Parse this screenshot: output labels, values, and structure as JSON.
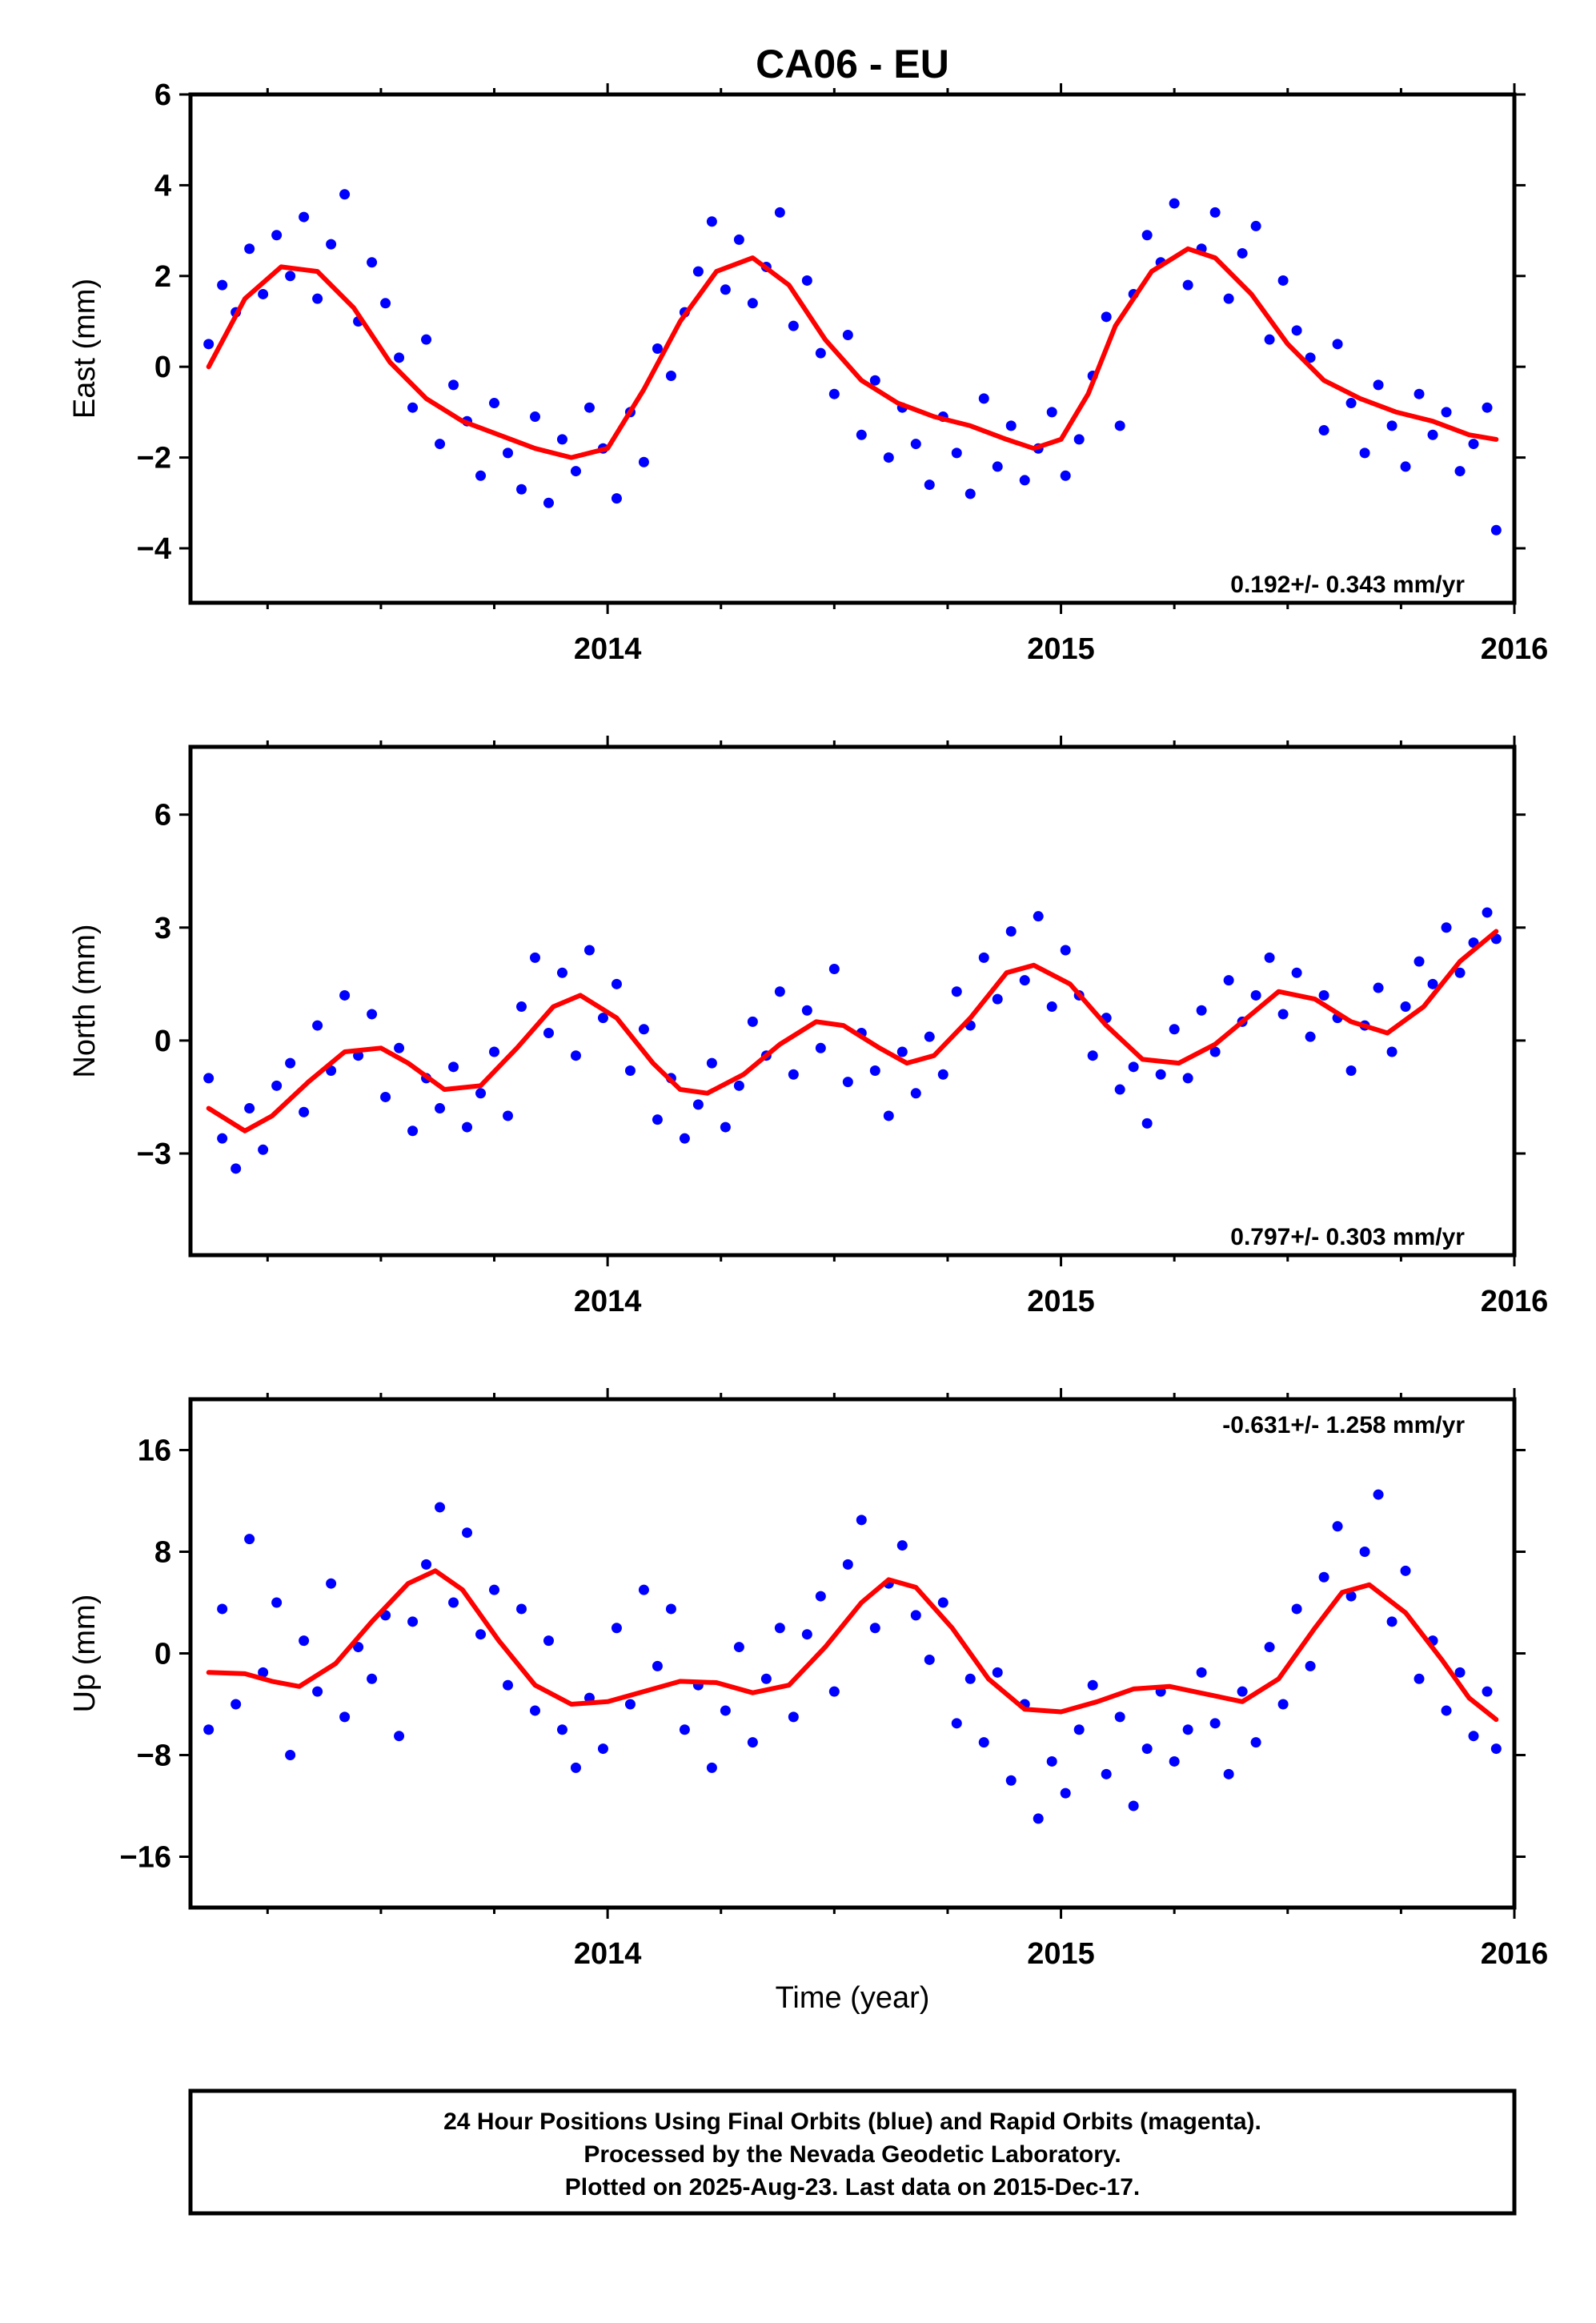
{
  "title": "CA06 - EU",
  "xlabel": "Time (year)",
  "footer": {
    "line1": "24 Hour Positions Using Final Orbits (blue) and Rapid Orbits (magenta).",
    "line2": "Processed by the Nevada Geodetic Laboratory.",
    "line3": "Plotted on 2025-Aug-23. Last data on 2015-Dec-17."
  },
  "colors": {
    "points": "#0000ff",
    "fit": "#ff0000",
    "frame": "#000000"
  },
  "chart_data": [
    {
      "type": "scatter",
      "component": "east",
      "ylabel": "East (mm)",
      "rate_label": "0.192+/- 0.343 mm/yr",
      "xlim": [
        2013.08,
        2016.0
      ],
      "ylim": [
        -5.2,
        6.0
      ],
      "yticks": [
        6,
        4,
        2,
        0,
        -2,
        -4
      ],
      "ytick_labels": [
        "6",
        "4",
        "2",
        "0",
        "−2",
        "−4"
      ],
      "xticks": [
        2014,
        2015,
        2016
      ],
      "xtick_labels": [
        "2014",
        "2015",
        "2016"
      ],
      "xminor": [
        2013.25,
        2013.5,
        2013.75,
        2014.25,
        2014.5,
        2014.75,
        2015.25,
        2015.5,
        2015.75
      ],
      "series": [
        {
          "role": "daily positions",
          "x": [
            2013.12,
            2013.15,
            2013.18,
            2013.21,
            2013.24,
            2013.27,
            2013.3,
            2013.33,
            2013.36,
            2013.39,
            2013.42,
            2013.45,
            2013.48,
            2013.51,
            2013.54,
            2013.57,
            2013.6,
            2013.63,
            2013.66,
            2013.69,
            2013.72,
            2013.75,
            2013.78,
            2013.81,
            2013.84,
            2013.87,
            2013.9,
            2013.93,
            2013.96,
            2013.99,
            2014.02,
            2014.05,
            2014.08,
            2014.11,
            2014.14,
            2014.17,
            2014.2,
            2014.23,
            2014.26,
            2014.29,
            2014.32,
            2014.35,
            2014.38,
            2014.41,
            2014.44,
            2014.47,
            2014.5,
            2014.53,
            2014.56,
            2014.59,
            2014.62,
            2014.65,
            2014.68,
            2014.71,
            2014.74,
            2014.77,
            2014.8,
            2014.83,
            2014.86,
            2014.89,
            2014.92,
            2014.95,
            2014.98,
            2015.01,
            2015.04,
            2015.07,
            2015.1,
            2015.13,
            2015.16,
            2015.19,
            2015.22,
            2015.25,
            2015.28,
            2015.31,
            2015.34,
            2015.37,
            2015.4,
            2015.43,
            2015.46,
            2015.49,
            2015.52,
            2015.55,
            2015.58,
            2015.61,
            2015.64,
            2015.67,
            2015.7,
            2015.73,
            2015.76,
            2015.79,
            2015.82,
            2015.85,
            2015.88,
            2015.91,
            2015.94,
            2015.96
          ],
          "y": [
            0.5,
            1.8,
            1.2,
            2.6,
            1.6,
            2.9,
            2.0,
            3.3,
            1.5,
            2.7,
            3.8,
            1.0,
            2.3,
            1.4,
            0.2,
            -0.9,
            0.6,
            -1.7,
            -0.4,
            -1.2,
            -2.4,
            -0.8,
            -1.9,
            -2.7,
            -1.1,
            -3.0,
            -1.6,
            -2.3,
            -0.9,
            -1.8,
            -2.9,
            -1.0,
            -2.1,
            0.4,
            -0.2,
            1.2,
            2.1,
            3.2,
            1.7,
            2.8,
            1.4,
            2.2,
            3.4,
            0.9,
            1.9,
            0.3,
            -0.6,
            0.7,
            -1.5,
            -0.3,
            -2.0,
            -0.9,
            -1.7,
            -2.6,
            -1.1,
            -1.9,
            -2.8,
            -0.7,
            -2.2,
            -1.3,
            -2.5,
            -1.8,
            -1.0,
            -2.4,
            -1.6,
            -0.2,
            1.1,
            -1.3,
            1.6,
            2.9,
            2.3,
            3.6,
            1.8,
            2.6,
            3.4,
            1.5,
            2.5,
            3.1,
            0.6,
            1.9,
            0.8,
            0.2,
            -1.4,
            0.5,
            -0.8,
            -1.9,
            -0.4,
            -1.3,
            -2.2,
            -0.6,
            -1.5,
            -1.0,
            -2.3,
            -1.7,
            -0.9,
            -3.6
          ]
        },
        {
          "role": "seasonal fit",
          "x": [
            2013.12,
            2013.2,
            2013.28,
            2013.36,
            2013.44,
            2013.52,
            2013.6,
            2013.68,
            2013.76,
            2013.84,
            2013.92,
            2014.0,
            2014.08,
            2014.16,
            2014.24,
            2014.32,
            2014.4,
            2014.48,
            2014.56,
            2014.64,
            2014.72,
            2014.8,
            2014.88,
            2014.94,
            2015.0,
            2015.06,
            2015.12,
            2015.2,
            2015.28,
            2015.34,
            2015.42,
            2015.5,
            2015.58,
            2015.66,
            2015.74,
            2015.82,
            2015.9,
            2015.96
          ],
          "y": [
            0.0,
            1.5,
            2.2,
            2.1,
            1.3,
            0.1,
            -0.7,
            -1.2,
            -1.5,
            -1.8,
            -2.0,
            -1.8,
            -0.5,
            1.0,
            2.1,
            2.4,
            1.8,
            0.6,
            -0.3,
            -0.8,
            -1.1,
            -1.3,
            -1.6,
            -1.8,
            -1.6,
            -0.6,
            0.9,
            2.1,
            2.6,
            2.4,
            1.6,
            0.5,
            -0.3,
            -0.7,
            -1.0,
            -1.2,
            -1.5,
            -1.6
          ]
        }
      ]
    },
    {
      "type": "scatter",
      "component": "north",
      "ylabel": "North (mm)",
      "rate_label": "0.797+/- 0.303 mm/yr",
      "xlim": [
        2013.08,
        2016.0
      ],
      "ylim": [
        -5.7,
        7.8
      ],
      "yticks": [
        6,
        3,
        0,
        -3
      ],
      "ytick_labels": [
        "6",
        "3",
        "0",
        "−3"
      ],
      "xticks": [
        2014,
        2015,
        2016
      ],
      "xtick_labels": [
        "2014",
        "2015",
        "2016"
      ],
      "xminor": [
        2013.25,
        2013.5,
        2013.75,
        2014.25,
        2014.5,
        2014.75,
        2015.25,
        2015.5,
        2015.75
      ],
      "series": [
        {
          "role": "daily positions",
          "x": [
            2013.12,
            2013.15,
            2013.18,
            2013.21,
            2013.24,
            2013.27,
            2013.3,
            2013.33,
            2013.36,
            2013.39,
            2013.42,
            2013.45,
            2013.48,
            2013.51,
            2013.54,
            2013.57,
            2013.6,
            2013.63,
            2013.66,
            2013.69,
            2013.72,
            2013.75,
            2013.78,
            2013.81,
            2013.84,
            2013.87,
            2013.9,
            2013.93,
            2013.96,
            2013.99,
            2014.02,
            2014.05,
            2014.08,
            2014.11,
            2014.14,
            2014.17,
            2014.2,
            2014.23,
            2014.26,
            2014.29,
            2014.32,
            2014.35,
            2014.38,
            2014.41,
            2014.44,
            2014.47,
            2014.5,
            2014.53,
            2014.56,
            2014.59,
            2014.62,
            2014.65,
            2014.68,
            2014.71,
            2014.74,
            2014.77,
            2014.8,
            2014.83,
            2014.86,
            2014.89,
            2014.92,
            2014.95,
            2014.98,
            2015.01,
            2015.04,
            2015.07,
            2015.1,
            2015.13,
            2015.16,
            2015.19,
            2015.22,
            2015.25,
            2015.28,
            2015.31,
            2015.34,
            2015.37,
            2015.4,
            2015.43,
            2015.46,
            2015.49,
            2015.52,
            2015.55,
            2015.58,
            2015.61,
            2015.64,
            2015.67,
            2015.7,
            2015.73,
            2015.76,
            2015.79,
            2015.82,
            2015.85,
            2015.88,
            2015.91,
            2015.94,
            2015.96
          ],
          "y": [
            -1.0,
            -2.6,
            -3.4,
            -1.8,
            -2.9,
            -1.2,
            -0.6,
            -1.9,
            0.4,
            -0.8,
            1.2,
            -0.4,
            0.7,
            -1.5,
            -0.2,
            -2.4,
            -1.0,
            -1.8,
            -0.7,
            -2.3,
            -1.4,
            -0.3,
            -2.0,
            0.9,
            2.2,
            0.2,
            1.8,
            -0.4,
            2.4,
            0.6,
            1.5,
            -0.8,
            0.3,
            -2.1,
            -1.0,
            -2.6,
            -1.7,
            -0.6,
            -2.3,
            -1.2,
            0.5,
            -0.4,
            1.3,
            -0.9,
            0.8,
            -0.2,
            1.9,
            -1.1,
            0.2,
            -0.8,
            -2.0,
            -0.3,
            -1.4,
            0.1,
            -0.9,
            1.3,
            0.4,
            2.2,
            1.1,
            2.9,
            1.6,
            3.3,
            0.9,
            2.4,
            1.2,
            -0.4,
            0.6,
            -1.3,
            -0.7,
            -2.2,
            -0.9,
            0.3,
            -1.0,
            0.8,
            -0.3,
            1.6,
            0.5,
            1.2,
            2.2,
            0.7,
            1.8,
            0.1,
            1.2,
            0.6,
            -0.8,
            0.4,
            1.4,
            -0.3,
            0.9,
            2.1,
            1.5,
            3.0,
            1.8,
            2.6,
            3.4,
            2.7
          ]
        },
        {
          "role": "seasonal fit",
          "x": [
            2013.12,
            2013.2,
            2013.26,
            2013.34,
            2013.42,
            2013.5,
            2013.56,
            2013.64,
            2013.72,
            2013.8,
            2013.88,
            2013.94,
            2014.02,
            2014.1,
            2014.16,
            2014.22,
            2014.3,
            2014.38,
            2014.46,
            2014.52,
            2014.6,
            2014.66,
            2014.72,
            2014.8,
            2014.88,
            2014.94,
            2015.02,
            2015.1,
            2015.18,
            2015.26,
            2015.34,
            2015.42,
            2015.48,
            2015.56,
            2015.64,
            2015.72,
            2015.8,
            2015.88,
            2015.96
          ],
          "y": [
            -1.8,
            -2.4,
            -2.0,
            -1.1,
            -0.3,
            -0.2,
            -0.6,
            -1.3,
            -1.2,
            -0.2,
            0.9,
            1.2,
            0.6,
            -0.6,
            -1.3,
            -1.4,
            -0.9,
            -0.1,
            0.5,
            0.4,
            -0.2,
            -0.6,
            -0.4,
            0.6,
            1.8,
            2.0,
            1.5,
            0.4,
            -0.5,
            -0.6,
            -0.1,
            0.7,
            1.3,
            1.1,
            0.5,
            0.2,
            0.9,
            2.1,
            2.9
          ]
        }
      ]
    },
    {
      "type": "scatter",
      "component": "up",
      "ylabel": "Up (mm)",
      "rate_label": "-0.631+/- 1.258 mm/yr",
      "xlim": [
        2013.08,
        2016.0
      ],
      "ylim": [
        -20.0,
        20.0
      ],
      "yticks": [
        16,
        8,
        0,
        -8,
        -16
      ],
      "ytick_labels": [
        "16",
        "8",
        "0",
        "−8",
        "−16"
      ],
      "xticks": [
        2014,
        2015,
        2016
      ],
      "xtick_labels": [
        "2014",
        "2015",
        "2016"
      ],
      "xminor": [
        2013.25,
        2013.5,
        2013.75,
        2014.25,
        2014.5,
        2014.75,
        2015.25,
        2015.5,
        2015.75
      ],
      "series": [
        {
          "role": "daily positions",
          "x": [
            2013.12,
            2013.15,
            2013.18,
            2013.21,
            2013.24,
            2013.27,
            2013.3,
            2013.33,
            2013.36,
            2013.39,
            2013.42,
            2013.45,
            2013.48,
            2013.51,
            2013.54,
            2013.57,
            2013.6,
            2013.63,
            2013.66,
            2013.69,
            2013.72,
            2013.75,
            2013.78,
            2013.81,
            2013.84,
            2013.87,
            2013.9,
            2013.93,
            2013.96,
            2013.99,
            2014.02,
            2014.05,
            2014.08,
            2014.11,
            2014.14,
            2014.17,
            2014.2,
            2014.23,
            2014.26,
            2014.29,
            2014.32,
            2014.35,
            2014.38,
            2014.41,
            2014.44,
            2014.47,
            2014.5,
            2014.53,
            2014.56,
            2014.59,
            2014.62,
            2014.65,
            2014.68,
            2014.71,
            2014.74,
            2014.77,
            2014.8,
            2014.83,
            2014.86,
            2014.89,
            2014.92,
            2014.95,
            2014.98,
            2015.01,
            2015.04,
            2015.07,
            2015.1,
            2015.13,
            2015.16,
            2015.19,
            2015.22,
            2015.25,
            2015.28,
            2015.31,
            2015.34,
            2015.37,
            2015.4,
            2015.43,
            2015.46,
            2015.49,
            2015.52,
            2015.55,
            2015.58,
            2015.61,
            2015.64,
            2015.67,
            2015.7,
            2015.73,
            2015.76,
            2015.79,
            2015.82,
            2015.85,
            2015.88,
            2015.91,
            2015.94,
            2015.96
          ],
          "y": [
            -6.0,
            3.5,
            -4.0,
            9.0,
            -1.5,
            4.0,
            -8.0,
            1.0,
            -3.0,
            5.5,
            -5.0,
            0.5,
            -2.0,
            3.0,
            -6.5,
            2.5,
            7.0,
            11.5,
            4.0,
            9.5,
            1.5,
            5.0,
            -2.5,
            3.5,
            -4.5,
            1.0,
            -6.0,
            -9.0,
            -3.5,
            -7.5,
            2.0,
            -4.0,
            5.0,
            -1.0,
            3.5,
            -6.0,
            -2.5,
            -9.0,
            -4.5,
            0.5,
            -7.0,
            -2.0,
            2.0,
            -5.0,
            1.5,
            4.5,
            -3.0,
            7.0,
            10.5,
            2.0,
            5.5,
            8.5,
            3.0,
            -0.5,
            4.0,
            -5.5,
            -2.0,
            -7.0,
            -1.5,
            -10.0,
            -4.0,
            -13.0,
            -8.5,
            -11.0,
            -6.0,
            -2.5,
            -9.5,
            -5.0,
            -12.0,
            -7.5,
            -3.0,
            -8.5,
            -6.0,
            -1.5,
            -5.5,
            -9.5,
            -3.0,
            -7.0,
            0.5,
            -4.0,
            3.5,
            -1.0,
            6.0,
            10.0,
            4.5,
            8.0,
            12.5,
            2.5,
            6.5,
            -2.0,
            1.0,
            -4.5,
            -1.5,
            -6.5,
            -3.0,
            -7.5
          ]
        },
        {
          "role": "seasonal fit",
          "x": [
            2013.12,
            2013.2,
            2013.26,
            2013.32,
            2013.4,
            2013.48,
            2013.56,
            2013.62,
            2013.68,
            2013.76,
            2013.84,
            2013.92,
            2014.0,
            2014.08,
            2014.16,
            2014.24,
            2014.32,
            2014.4,
            2014.48,
            2014.56,
            2014.62,
            2014.68,
            2014.76,
            2014.84,
            2014.92,
            2015.0,
            2015.08,
            2015.16,
            2015.24,
            2015.32,
            2015.4,
            2015.48,
            2015.56,
            2015.62,
            2015.68,
            2015.76,
            2015.84,
            2015.9,
            2015.96
          ],
          "y": [
            -1.5,
            -1.6,
            -2.2,
            -2.6,
            -0.8,
            2.5,
            5.5,
            6.5,
            5.0,
            1.0,
            -2.5,
            -4.0,
            -3.8,
            -3.0,
            -2.2,
            -2.3,
            -3.1,
            -2.5,
            0.5,
            4.0,
            5.8,
            5.2,
            2.0,
            -2.0,
            -4.4,
            -4.6,
            -3.8,
            -2.8,
            -2.6,
            -3.2,
            -3.8,
            -2.0,
            2.0,
            4.8,
            5.4,
            3.2,
            -0.5,
            -3.5,
            -5.2
          ]
        }
      ]
    }
  ]
}
